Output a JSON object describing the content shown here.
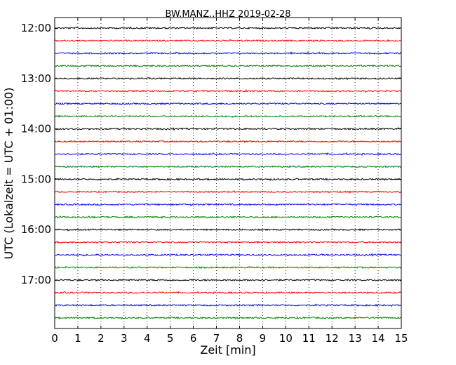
{
  "chart_data": {
    "type": "line",
    "title": "BW.MANZ..HHZ 2019-02-28",
    "xlabel": "Zeit  [min]",
    "ylabel": "UTC (Lokalzeit = UTC + 01:00)",
    "xlim": [
      0,
      15
    ],
    "x_ticks": [
      "0",
      "1",
      "2",
      "3",
      "4",
      "5",
      "6",
      "7",
      "8",
      "9",
      "10",
      "11",
      "12",
      "13",
      "14",
      "15"
    ],
    "y_ticks": [
      "12:00",
      "13:00",
      "14:00",
      "15:00",
      "16:00",
      "17:00"
    ],
    "trace_interval_min": 15,
    "grid": "vertical dotted",
    "color_cycle": [
      "#000000",
      "#ff0000",
      "#0000ff",
      "#008000"
    ],
    "traces": [
      {
        "start": "12:00",
        "color": "#000000"
      },
      {
        "start": "12:15",
        "color": "#ff0000"
      },
      {
        "start": "12:30",
        "color": "#0000ff"
      },
      {
        "start": "12:45",
        "color": "#008000"
      },
      {
        "start": "13:00",
        "color": "#000000"
      },
      {
        "start": "13:15",
        "color": "#ff0000"
      },
      {
        "start": "13:30",
        "color": "#0000ff"
      },
      {
        "start": "13:45",
        "color": "#008000"
      },
      {
        "start": "14:00",
        "color": "#000000"
      },
      {
        "start": "14:15",
        "color": "#ff0000"
      },
      {
        "start": "14:30",
        "color": "#0000ff"
      },
      {
        "start": "14:45",
        "color": "#008000"
      },
      {
        "start": "15:00",
        "color": "#000000"
      },
      {
        "start": "15:15",
        "color": "#ff0000"
      },
      {
        "start": "15:30",
        "color": "#0000ff"
      },
      {
        "start": "15:45",
        "color": "#008000"
      },
      {
        "start": "16:00",
        "color": "#000000"
      },
      {
        "start": "16:15",
        "color": "#ff0000"
      },
      {
        "start": "16:30",
        "color": "#0000ff"
      },
      {
        "start": "16:45",
        "color": "#008000"
      },
      {
        "start": "17:00",
        "color": "#000000"
      },
      {
        "start": "17:15",
        "color": "#ff0000"
      },
      {
        "start": "17:30",
        "color": "#0000ff"
      },
      {
        "start": "17:45",
        "color": "#008000"
      }
    ]
  }
}
